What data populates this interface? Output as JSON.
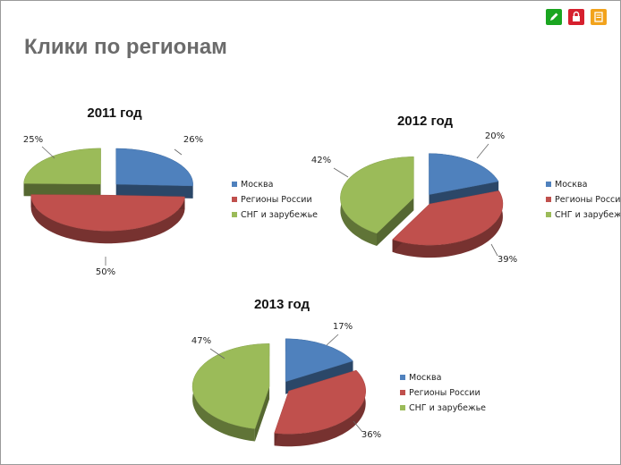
{
  "page": {
    "title": "Клики по регионам"
  },
  "toolbar": {
    "buttons": [
      {
        "icon": "pencil-icon",
        "color": "#1aa520"
      },
      {
        "icon": "lock-icon",
        "color": "#d6202e"
      },
      {
        "icon": "note-icon",
        "color": "#f2a31c"
      }
    ]
  },
  "chart_data": [
    {
      "type": "pie",
      "title": "2011 год",
      "categories": [
        "Москва",
        "Регионы России",
        "СНГ и зарубежье"
      ],
      "values": [
        26,
        50,
        25
      ],
      "labels": [
        "26%",
        "50%",
        "25%"
      ],
      "colors": [
        "#4f81bd",
        "#c0504d",
        "#9bbb59"
      ],
      "legend": "right",
      "three_d": true,
      "exploded": true
    },
    {
      "type": "pie",
      "title": "2012 год",
      "categories": [
        "Москва",
        "Регионы России",
        "СНГ и зарубежье"
      ],
      "values": [
        20,
        39,
        42
      ],
      "labels": [
        "20%",
        "39%",
        "42%"
      ],
      "colors": [
        "#4f81bd",
        "#c0504d",
        "#9bbb59"
      ],
      "legend": "right",
      "three_d": true,
      "exploded": true
    },
    {
      "type": "pie",
      "title": "2013 год",
      "categories": [
        "Москва",
        "Регионы России",
        "СНГ и зарубежье"
      ],
      "values": [
        17,
        36,
        47
      ],
      "labels": [
        "17%",
        "36%",
        "47%"
      ],
      "colors": [
        "#4f81bd",
        "#c0504d",
        "#9bbb59"
      ],
      "legend": "right",
      "three_d": true,
      "exploded": true
    }
  ]
}
